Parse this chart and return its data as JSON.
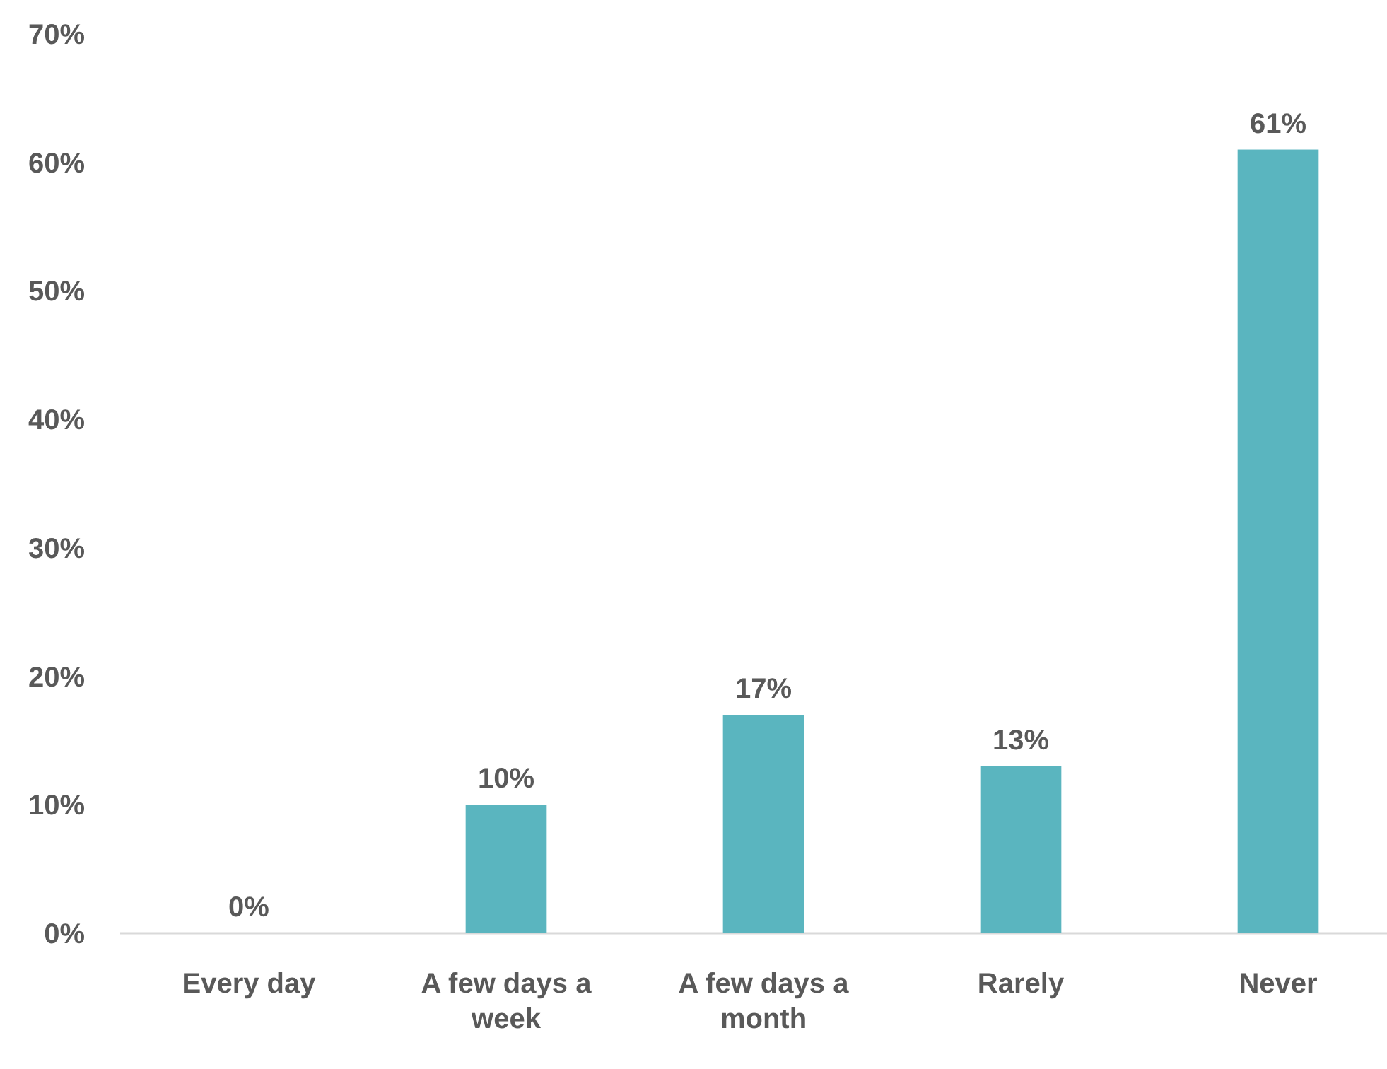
{
  "chart_data": {
    "type": "bar",
    "categories": [
      "Every day",
      "A few days a week",
      "A few days a month",
      "Rarely",
      "Never"
    ],
    "values": [
      0,
      10,
      17,
      13,
      61
    ],
    "color": "#5ab5bf",
    "value_labels": [
      "0%",
      "10%",
      "17%",
      "13%",
      "61%"
    ],
    "ylim": [
      0,
      70
    ],
    "yticks": [
      {
        "value": 0,
        "label": "0%"
      },
      {
        "value": 10,
        "label": "10%"
      },
      {
        "value": 20,
        "label": "20%"
      },
      {
        "value": 30,
        "label": "30%"
      },
      {
        "value": 40,
        "label": "40%"
      },
      {
        "value": 50,
        "label": "50%"
      },
      {
        "value": 60,
        "label": "60%"
      },
      {
        "value": 70,
        "label": "70%"
      }
    ]
  }
}
